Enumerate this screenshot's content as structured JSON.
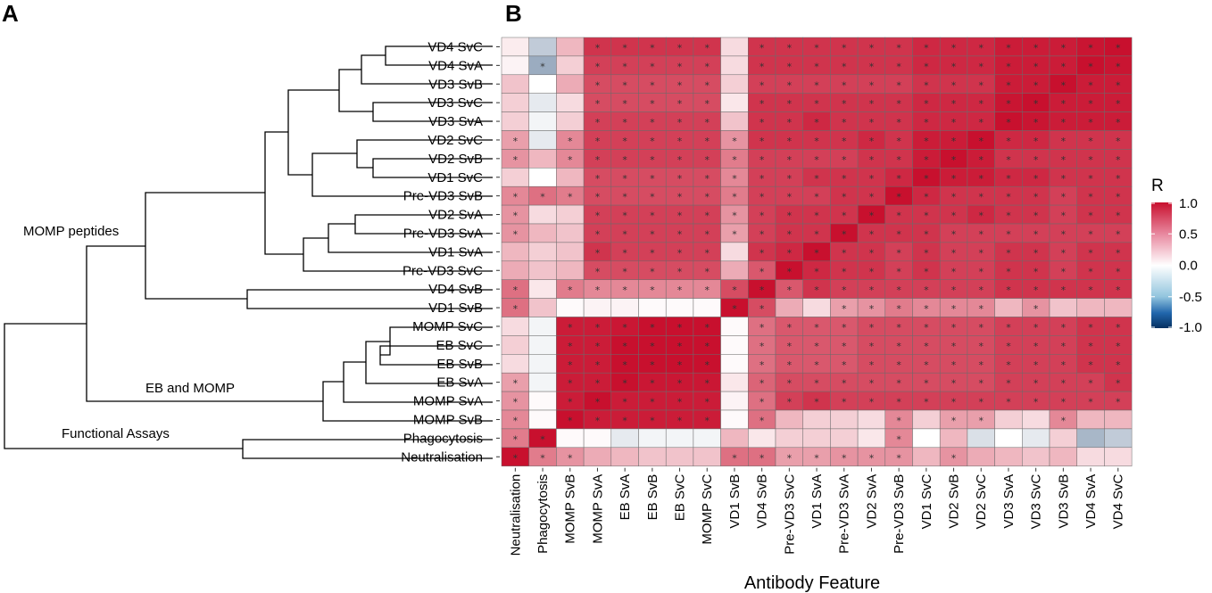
{
  "panels": {
    "a": "A",
    "b": "B"
  },
  "dendrogram": {
    "clusters": {
      "momp_peptides": "MOMP peptides",
      "eb_and_momp": "EB and MOMP",
      "functional_assays": "Functional Assays"
    }
  },
  "chart_data": {
    "type": "heatmap",
    "title": "",
    "xlabel": "Antibody Feature",
    "ylabel": "",
    "rows": [
      "VD4 SvC",
      "VD4 SvA",
      "VD3 SvB",
      "VD3 SvC",
      "VD3 SvA",
      "VD2 SvC",
      "VD2 SvB",
      "VD1 SvC",
      "Pre-VD3 SvB",
      "VD2 SvA",
      "Pre-VD3 SvA",
      "VD1 SvA",
      "Pre-VD3 SvC",
      "VD4 SvB",
      "VD1 SvB",
      "MOMP SvC",
      "EB SvC",
      "EB SvB",
      "EB SvA",
      "MOMP SvA",
      "MOMP SvB",
      "Phagocytosis",
      "Neutralisation"
    ],
    "columns": [
      "Neutralisation",
      "Phagocytosis",
      "MOMP SvB",
      "MOMP SvA",
      "EB SvA",
      "EB SvB",
      "EB SvC",
      "MOMP SvC",
      "VD1 SvB",
      "VD4 SvB",
      "Pre-VD3 SvC",
      "VD1 SvA",
      "Pre-VD3 SvA",
      "VD2 SvA",
      "Pre-VD3 SvB",
      "VD1 SvC",
      "VD2 SvB",
      "VD2 SvC",
      "VD3 SvA",
      "VD3 SvC",
      "VD3 SvB",
      "VD4 SvA",
      "VD4 SvC"
    ],
    "values": [
      [
        0.08,
        -0.25,
        0.3,
        0.85,
        0.85,
        0.85,
        0.85,
        0.85,
        0.15,
        0.85,
        0.85,
        0.85,
        0.85,
        0.85,
        0.85,
        0.9,
        0.9,
        0.9,
        0.95,
        0.95,
        0.95,
        0.98,
        1.0
      ],
      [
        0.05,
        -0.4,
        0.2,
        0.8,
        0.8,
        0.8,
        0.8,
        0.8,
        0.15,
        0.85,
        0.85,
        0.85,
        0.85,
        0.85,
        0.85,
        0.9,
        0.9,
        0.9,
        0.95,
        0.95,
        0.95,
        1.0,
        0.98
      ],
      [
        0.25,
        0.0,
        0.35,
        0.75,
        0.75,
        0.75,
        0.75,
        0.75,
        0.2,
        0.8,
        0.8,
        0.8,
        0.8,
        0.8,
        0.8,
        0.85,
        0.85,
        0.85,
        0.95,
        0.95,
        1.0,
        0.95,
        0.95
      ],
      [
        0.2,
        -0.1,
        0.15,
        0.75,
        0.75,
        0.75,
        0.75,
        0.75,
        0.1,
        0.85,
        0.85,
        0.85,
        0.85,
        0.85,
        0.85,
        0.9,
        0.9,
        0.9,
        0.98,
        1.0,
        0.95,
        0.95,
        0.95
      ],
      [
        0.2,
        -0.05,
        0.2,
        0.8,
        0.8,
        0.8,
        0.8,
        0.8,
        0.25,
        0.85,
        0.85,
        0.9,
        0.85,
        0.85,
        0.85,
        0.9,
        0.9,
        0.9,
        1.0,
        0.98,
        0.95,
        0.95,
        0.95
      ],
      [
        0.4,
        -0.1,
        0.5,
        0.8,
        0.8,
        0.8,
        0.8,
        0.8,
        0.45,
        0.85,
        0.85,
        0.85,
        0.85,
        0.9,
        0.85,
        0.95,
        0.95,
        1.0,
        0.9,
        0.9,
        0.85,
        0.85,
        0.85
      ],
      [
        0.45,
        0.3,
        0.5,
        0.8,
        0.8,
        0.8,
        0.8,
        0.8,
        0.55,
        0.8,
        0.8,
        0.8,
        0.8,
        0.85,
        0.85,
        0.95,
        1.0,
        0.95,
        0.85,
        0.85,
        0.85,
        0.85,
        0.85
      ],
      [
        0.2,
        0.0,
        0.3,
        0.75,
        0.75,
        0.75,
        0.75,
        0.75,
        0.5,
        0.8,
        0.8,
        0.85,
        0.85,
        0.85,
        0.9,
        1.0,
        0.95,
        0.95,
        0.9,
        0.9,
        0.85,
        0.85,
        0.85
      ],
      [
        0.5,
        0.6,
        0.55,
        0.75,
        0.75,
        0.75,
        0.75,
        0.75,
        0.55,
        0.8,
        0.8,
        0.8,
        0.85,
        0.85,
        1.0,
        0.9,
        0.85,
        0.85,
        0.85,
        0.85,
        0.8,
        0.85,
        0.85
      ],
      [
        0.45,
        0.15,
        0.2,
        0.8,
        0.8,
        0.8,
        0.8,
        0.8,
        0.45,
        0.8,
        0.85,
        0.85,
        0.85,
        1.0,
        0.85,
        0.85,
        0.85,
        0.9,
        0.85,
        0.85,
        0.8,
        0.85,
        0.85
      ],
      [
        0.45,
        0.3,
        0.25,
        0.8,
        0.8,
        0.8,
        0.8,
        0.8,
        0.4,
        0.8,
        0.85,
        0.85,
        1.0,
        0.85,
        0.85,
        0.85,
        0.8,
        0.8,
        0.8,
        0.8,
        0.8,
        0.8,
        0.8
      ],
      [
        0.3,
        0.2,
        0.25,
        0.85,
        0.8,
        0.8,
        0.8,
        0.8,
        0.15,
        0.85,
        0.9,
        1.0,
        0.85,
        0.85,
        0.8,
        0.85,
        0.8,
        0.8,
        0.85,
        0.85,
        0.8,
        0.85,
        0.85
      ],
      [
        0.35,
        0.25,
        0.3,
        0.75,
        0.75,
        0.75,
        0.75,
        0.75,
        0.35,
        0.7,
        1.0,
        0.9,
        0.85,
        0.85,
        0.8,
        0.85,
        0.8,
        0.8,
        0.85,
        0.85,
        0.8,
        0.85,
        0.85
      ],
      [
        0.6,
        0.1,
        0.55,
        0.5,
        0.5,
        0.5,
        0.5,
        0.5,
        0.75,
        1.0,
        0.7,
        0.85,
        0.8,
        0.8,
        0.8,
        0.8,
        0.8,
        0.8,
        0.85,
        0.85,
        0.85,
        0.85,
        0.85
      ],
      [
        0.6,
        0.25,
        0.02,
        0.05,
        0.05,
        0.02,
        0.02,
        0.02,
        1.0,
        0.75,
        0.35,
        0.15,
        0.4,
        0.45,
        0.55,
        0.5,
        0.5,
        0.5,
        0.3,
        0.45,
        0.25,
        0.3,
        0.3
      ],
      [
        0.15,
        -0.05,
        0.95,
        0.95,
        0.97,
        1.0,
        1.0,
        1.0,
        0.02,
        0.6,
        0.7,
        0.7,
        0.7,
        0.75,
        0.75,
        0.75,
        0.75,
        0.75,
        0.8,
        0.8,
        0.8,
        0.85,
        0.85
      ],
      [
        0.2,
        -0.05,
        0.95,
        0.95,
        1.0,
        1.0,
        1.0,
        1.0,
        0.02,
        0.6,
        0.7,
        0.7,
        0.7,
        0.75,
        0.75,
        0.75,
        0.75,
        0.75,
        0.8,
        0.8,
        0.8,
        0.85,
        0.85
      ],
      [
        0.15,
        -0.05,
        0.95,
        0.95,
        1.0,
        1.0,
        1.0,
        1.0,
        0.02,
        0.6,
        0.7,
        0.7,
        0.7,
        0.75,
        0.75,
        0.75,
        0.75,
        0.75,
        0.8,
        0.8,
        0.8,
        0.85,
        0.85
      ],
      [
        0.4,
        -0.05,
        0.95,
        0.95,
        1.0,
        0.97,
        0.97,
        0.97,
        0.1,
        0.65,
        0.75,
        0.75,
        0.75,
        0.75,
        0.75,
        0.75,
        0.75,
        0.75,
        0.8,
        0.8,
        0.8,
        0.8,
        0.85
      ],
      [
        0.45,
        0.02,
        0.95,
        1.0,
        0.95,
        0.95,
        0.95,
        0.95,
        0.05,
        0.6,
        0.8,
        0.85,
        0.8,
        0.8,
        0.8,
        0.8,
        0.8,
        0.8,
        0.8,
        0.8,
        0.8,
        0.8,
        0.8
      ],
      [
        0.5,
        0.02,
        1.0,
        0.95,
        0.95,
        0.95,
        0.95,
        0.95,
        0.02,
        0.6,
        0.3,
        0.2,
        0.2,
        0.15,
        0.5,
        0.2,
        0.4,
        0.4,
        0.2,
        0.15,
        0.5,
        0.3,
        0.3
      ],
      [
        0.55,
        1.0,
        0.02,
        0.02,
        -0.1,
        -0.05,
        -0.05,
        -0.05,
        0.3,
        0.1,
        0.2,
        0.2,
        0.2,
        0.1,
        0.5,
        0.0,
        0.3,
        -0.15,
        0.0,
        -0.1,
        0.2,
        -0.35,
        -0.25
      ],
      [
        1.0,
        0.55,
        0.45,
        0.35,
        0.3,
        0.25,
        0.25,
        0.25,
        0.6,
        0.6,
        0.4,
        0.4,
        0.45,
        0.45,
        0.45,
        0.3,
        0.45,
        0.35,
        0.3,
        0.25,
        0.3,
        0.15,
        0.15
      ]
    ],
    "legend": {
      "title": "R",
      "range": [
        -1.0,
        1.0
      ],
      "ticks": [
        "1.0",
        "0.5",
        "0.0",
        "-0.5",
        "-1.0"
      ],
      "colors": {
        "low": "#053061",
        "mid": "#ffffff",
        "high": "#c8102e"
      },
      "position": "right"
    },
    "significance_marker": "*"
  }
}
